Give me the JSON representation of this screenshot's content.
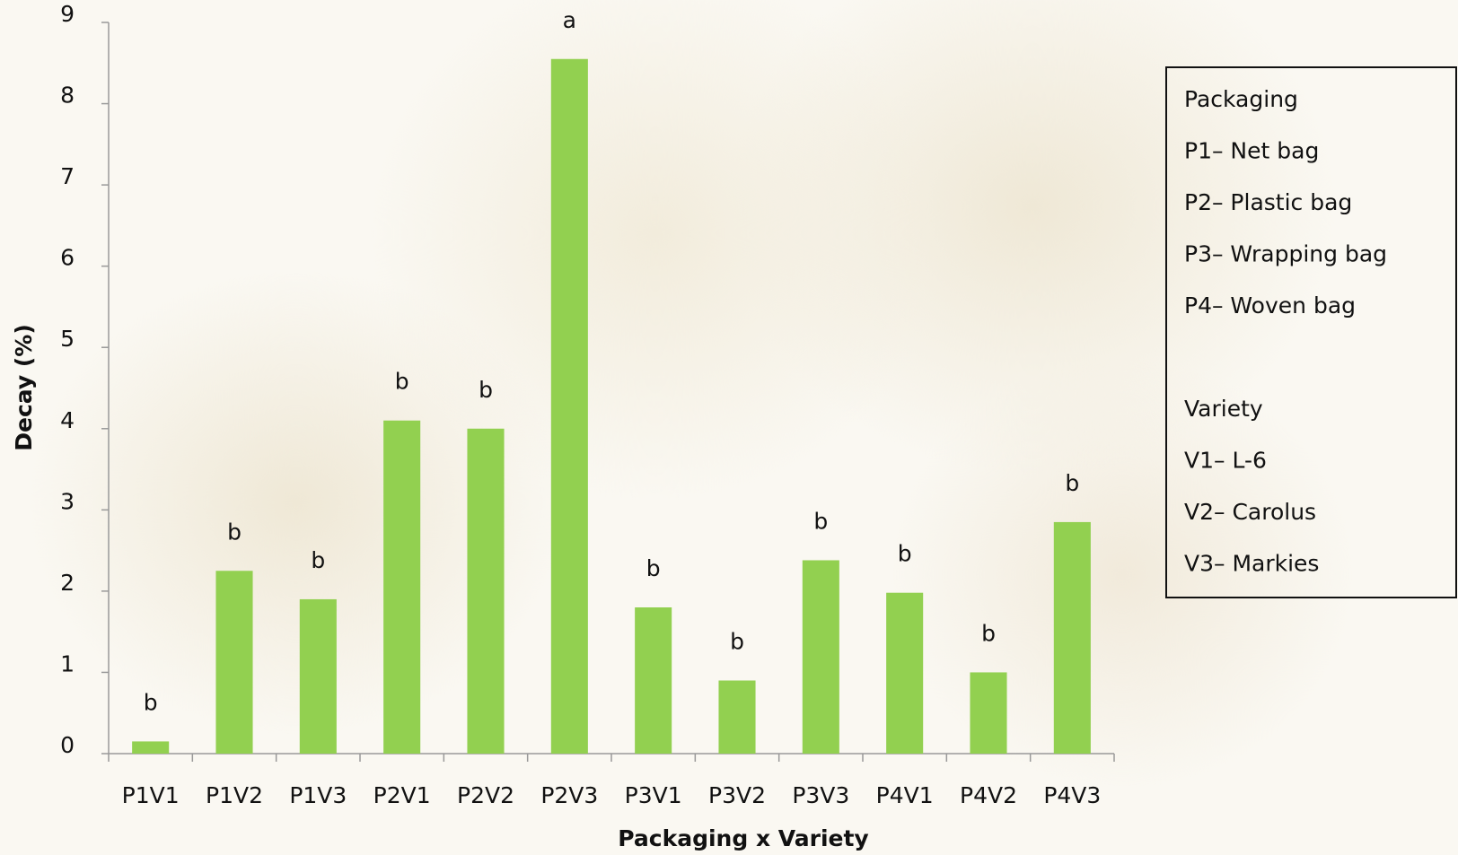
{
  "chart_data": {
    "type": "bar",
    "x_label": "Packaging x Variety",
    "y_label": "Decay (%)",
    "categories": [
      "P1V1",
      "P1V2",
      "P1V3",
      "P2V1",
      "P2V2",
      "P2V3",
      "P3V1",
      "P3V2",
      "P3V3",
      "P4V1",
      "P4V2",
      "P4V3"
    ],
    "values": [
      0.15,
      2.25,
      1.9,
      4.1,
      4.0,
      8.55,
      1.8,
      0.9,
      2.38,
      1.98,
      1.0,
      2.85
    ],
    "significance_letters": [
      "b",
      "b",
      "b",
      "b",
      "b",
      "a",
      "b",
      "b",
      "b",
      "b",
      "b",
      "b"
    ],
    "color": "#92d050",
    "ylim": [
      0,
      9
    ],
    "yticks": [
      0,
      1,
      2,
      3,
      4,
      5,
      6,
      7,
      8,
      9
    ],
    "grid": false,
    "legend_box": [
      "Packaging",
      "P1– Net bag",
      "P2– Plastic bag",
      "P3– Wrapping bag",
      "P4– Woven bag",
      "Variety",
      "V1– L-6",
      "V2– Carolus",
      "V3– Markies"
    ]
  }
}
